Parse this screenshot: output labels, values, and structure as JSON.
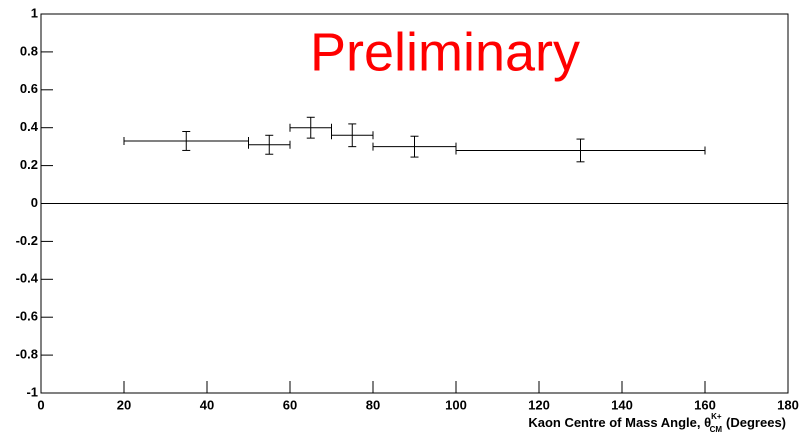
{
  "chart_data": {
    "type": "scatter",
    "annotation": "Preliminary",
    "x_label": {
      "main": "Kaon Centre of Mass Angle, θ",
      "superscript": "K+",
      "subscript": "CM",
      "unit": "(Degrees)"
    },
    "x": [
      35,
      55,
      65,
      75,
      90,
      130
    ],
    "x_errors": [
      15,
      5,
      5,
      5,
      10,
      30
    ],
    "values": [
      0.33,
      0.31,
      0.4,
      0.36,
      0.3,
      0.28
    ],
    "errors": [
      0.05,
      0.05,
      0.055,
      0.06,
      0.055,
      0.06
    ],
    "color": "#000000",
    "annotation_color": "#ff0000",
    "xlim": [
      0,
      180
    ],
    "xticks": [
      0,
      20,
      40,
      60,
      80,
      100,
      120,
      140,
      160,
      180
    ],
    "ylim": [
      -1,
      1
    ],
    "yticks": [
      -1,
      -0.8,
      -0.6,
      -0.4,
      -0.2,
      0,
      0.2,
      0.4,
      0.6,
      0.8,
      1
    ],
    "zero_line": true
  }
}
